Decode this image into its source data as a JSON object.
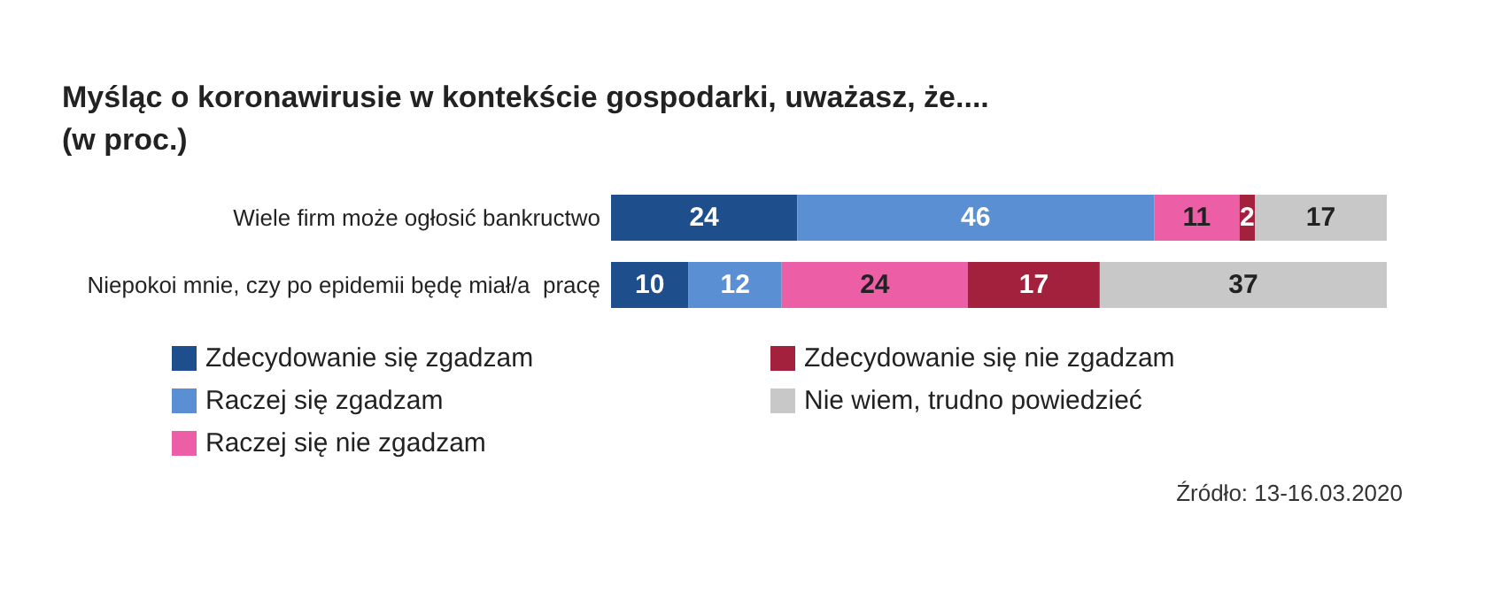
{
  "chart_data": {
    "type": "bar",
    "orientation": "horizontal",
    "stacked": true,
    "title": "Myśląc o koronawirusie w kontekście gospodarki, uważasz, że....\n(w proc.)",
    "categories": [
      "Wiele firm może ogłosić bankructwo",
      "Niepokoi mnie, czy po epidemii będę miał/a  pracę"
    ],
    "series": [
      {
        "name": "Zdecydowanie się zgadzam",
        "color": "#1f4e8c",
        "values": [
          24,
          10
        ]
      },
      {
        "name": "Raczej się zgadzam",
        "color": "#5b8fd4",
        "values": [
          46,
          12
        ]
      },
      {
        "name": "Raczej się nie zgadzam",
        "color": "#ec5fa6",
        "values": [
          11,
          24
        ]
      },
      {
        "name": "Zdecydowanie się nie zgadzam",
        "color": "#a3213d",
        "values": [
          2,
          17
        ]
      },
      {
        "name": "Nie wiem, trudno powiedzieć",
        "color": "#c8c8c8",
        "values": [
          17,
          37
        ]
      }
    ],
    "data_labels": true,
    "legend": "bottom",
    "grid": false,
    "annotations": [
      "Źródło: 13-16.03.2020"
    ]
  }
}
